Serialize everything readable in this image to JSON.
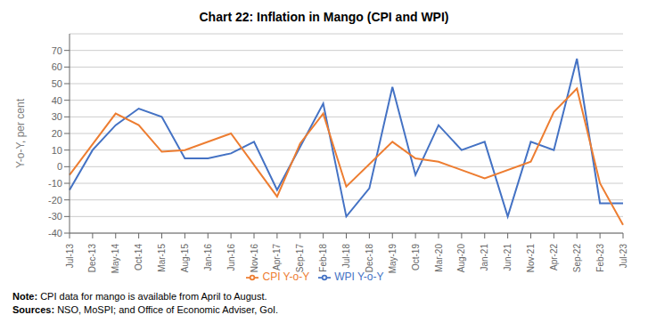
{
  "chart_data": {
    "type": "line",
    "title": "Chart 22: Inflation in Mango (CPI and WPI)",
    "y_label": "Y-o-Y, per cent",
    "annotations": [
      "Note: CPI data for mango is available from April to August.",
      "Sources: NSO, MoSPI; and Office of Economic Adviser, GoI."
    ],
    "categories": [
      "Jul-13",
      "Dec-13",
      "May-14",
      "Oct-14",
      "Mar-15",
      "Aug-15",
      "Jan-16",
      "Jun-16",
      "Nov-16",
      "Apr-17",
      "Sep-17",
      "Feb-18",
      "Jul-18",
      "Dec-18",
      "May-19",
      "Oct-19",
      "Mar-20",
      "Aug-20",
      "Jan-21",
      "Jun-21",
      "Nov-21",
      "Apr-22",
      "Sep-22",
      "Feb-23",
      "Jul-23"
    ],
    "series": [
      {
        "name": "WPI Y-o-Y",
        "color": "#4472C4",
        "marker": "none",
        "values": [
          -14,
          10,
          25,
          35,
          30,
          5,
          5,
          8,
          15,
          -14,
          12,
          38,
          -30,
          -13,
          48,
          -5,
          25,
          10,
          15,
          -30,
          15,
          10,
          65,
          -22,
          -22
        ]
      },
      {
        "name": "CPI Y-o-Y",
        "color": "#ED7D31",
        "marker": "none",
        "values": [
          -5,
          null,
          32,
          25,
          9,
          10,
          null,
          20,
          null,
          -18,
          14,
          32,
          -12,
          null,
          15,
          5,
          3,
          null,
          -7,
          null,
          3,
          33,
          47,
          -10,
          -35
        ]
      }
    ],
    "ylim": [
      -40,
      80
    ],
    "yticks": [
      -40,
      -30,
      -20,
      -10,
      0,
      10,
      20,
      30,
      40,
      50,
      60,
      70
    ],
    "grid": "y",
    "legend": "bottom"
  }
}
